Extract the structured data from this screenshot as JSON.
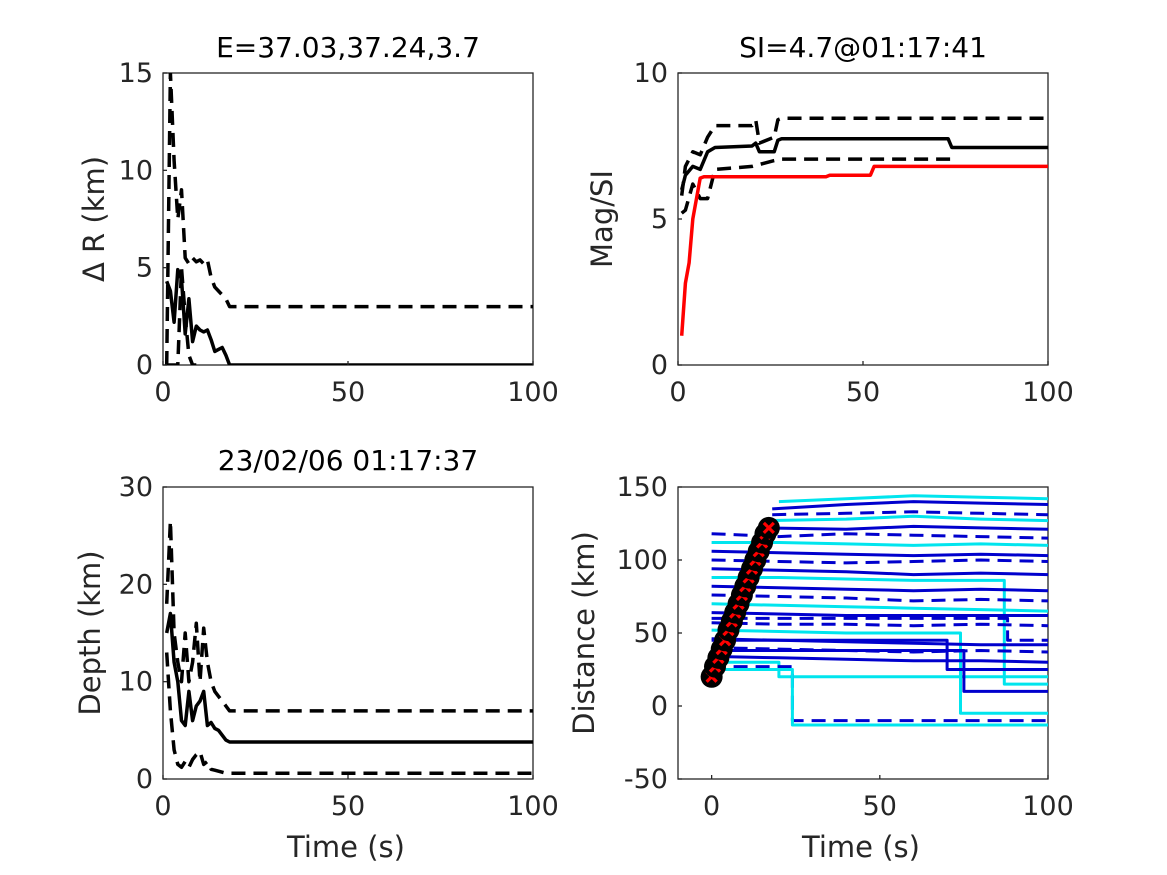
{
  "chart_data": [
    {
      "type": "line",
      "title": "E=37.03,37.24,3.7",
      "xlabel": "",
      "ylabel": "Δ R (km)",
      "xlim": [
        0,
        100
      ],
      "ylim": [
        0,
        15
      ],
      "xticks": [
        "0",
        "50",
        "100"
      ],
      "yticks": [
        "0",
        "5",
        "10",
        "15"
      ],
      "grid": false,
      "series": [
        {
          "style": "solid",
          "color": "#000000",
          "x": [
            1,
            2,
            3,
            4,
            5,
            6,
            7,
            8,
            9,
            10,
            11,
            12,
            13,
            14,
            15,
            16,
            17,
            18,
            20,
            100
          ],
          "y": [
            4.3,
            3.8,
            2.2,
            4.9,
            4.4,
            1.6,
            3.4,
            1.2,
            2.0,
            1.8,
            1.7,
            1.8,
            1.3,
            0.7,
            0.8,
            0.9,
            0.5,
            0.0,
            0.0,
            0.0
          ]
        },
        {
          "style": "dashed",
          "color": "#000000",
          "x": [
            1,
            2,
            3,
            4,
            5,
            6,
            7,
            8,
            9,
            10,
            11,
            12,
            13,
            14,
            15,
            16,
            17,
            18,
            20,
            100
          ],
          "y": [
            0.0,
            15.0,
            10.5,
            7.5,
            9.0,
            5.5,
            5.2,
            5.5,
            5.3,
            5.4,
            5.2,
            5.4,
            4.5,
            4.0,
            3.8,
            3.6,
            3.4,
            3.0,
            3.0,
            3.0
          ]
        },
        {
          "style": "dashed",
          "color": "#000000",
          "x": [
            1,
            2,
            3,
            4,
            5,
            6,
            7,
            8,
            9
          ],
          "y": [
            0.0,
            0.0,
            0.0,
            0.0,
            5.0,
            2.5,
            0.5,
            0.0,
            0.0
          ]
        }
      ]
    },
    {
      "type": "line",
      "title": "SI=4.7@01:17:41",
      "xlabel": "",
      "ylabel": "Mag/SI",
      "xlim": [
        0,
        100
      ],
      "ylim": [
        0,
        10
      ],
      "xticks": [
        "0",
        "50",
        "100"
      ],
      "yticks": [
        "0",
        "5",
        "10"
      ],
      "grid": false,
      "series": [
        {
          "style": "solid",
          "color": "#000000",
          "x": [
            1,
            2,
            4,
            6,
            8,
            10,
            20,
            21,
            22,
            26,
            27,
            28,
            73,
            74,
            100
          ],
          "y": [
            6.0,
            6.5,
            6.8,
            6.7,
            7.3,
            7.45,
            7.5,
            7.6,
            7.3,
            7.3,
            7.7,
            7.75,
            7.75,
            7.45,
            7.45
          ]
        },
        {
          "style": "dashed",
          "color": "#000000",
          "x": [
            1,
            2,
            4,
            6,
            8,
            10,
            20,
            21,
            22,
            26,
            27,
            28,
            73,
            74,
            100
          ],
          "y": [
            5.8,
            6.8,
            7.3,
            7.2,
            7.8,
            8.2,
            8.2,
            8.4,
            7.6,
            7.8,
            8.4,
            8.45,
            8.45,
            8.45,
            8.45
          ]
        },
        {
          "style": "dashed",
          "color": "#000000",
          "x": [
            1,
            2,
            4,
            6,
            8,
            10,
            20,
            26,
            28,
            73,
            74
          ],
          "y": [
            5.2,
            5.3,
            6.2,
            5.7,
            5.7,
            6.7,
            6.8,
            7.0,
            7.05,
            7.05,
            7.05
          ]
        },
        {
          "style": "solid",
          "color": "#ff0000",
          "x": [
            1,
            2,
            3,
            4,
            6,
            7,
            10,
            20,
            40,
            41,
            52,
            53,
            100
          ],
          "y": [
            1.0,
            2.8,
            3.5,
            5.0,
            6.4,
            6.45,
            6.45,
            6.45,
            6.45,
            6.5,
            6.5,
            6.8,
            6.8
          ]
        }
      ]
    },
    {
      "type": "line",
      "title": "23/02/06 01:17:37",
      "xlabel": "Time (s)",
      "ylabel": "Depth (km)",
      "xlim": [
        0,
        100
      ],
      "ylim": [
        0,
        30
      ],
      "xticks": [
        "0",
        "50",
        "100"
      ],
      "yticks": [
        "0",
        "10",
        "20",
        "30"
      ],
      "grid": false,
      "series": [
        {
          "style": "solid",
          "color": "#000000",
          "x": [
            1,
            2,
            3,
            4,
            5,
            6,
            7,
            8,
            9,
            10,
            11,
            12,
            13,
            14,
            15,
            16,
            17,
            18,
            100
          ],
          "y": [
            15,
            17,
            12,
            10,
            6,
            5.5,
            9,
            6,
            7.5,
            8,
            9,
            5.5,
            5.8,
            5.2,
            5.0,
            4.5,
            4.0,
            3.8,
            3.8
          ]
        },
        {
          "style": "dashed",
          "color": "#000000",
          "x": [
            1,
            2,
            3,
            4,
            5,
            6,
            7,
            8,
            9,
            10,
            11,
            12,
            13,
            14,
            15,
            16,
            17,
            18,
            100
          ],
          "y": [
            18,
            26.5,
            15,
            12,
            10,
            15,
            10,
            12,
            16,
            10,
            15.5,
            12,
            10,
            9,
            8.5,
            8,
            7.5,
            7.0,
            7.0
          ]
        },
        {
          "style": "dashed",
          "color": "#000000",
          "x": [
            1,
            2,
            3,
            4,
            5,
            6,
            7,
            8,
            9,
            10,
            11,
            12,
            13,
            14,
            15,
            16,
            17,
            18,
            100
          ],
          "y": [
            13,
            7,
            3,
            1.5,
            1.2,
            1.8,
            1.2,
            2.0,
            2.5,
            2.8,
            1.5,
            1.8,
            1.0,
            0.9,
            0.8,
            0.7,
            0.6,
            0.6,
            0.6
          ]
        }
      ]
    },
    {
      "type": "line",
      "title": "",
      "xlabel": "Time (s)",
      "ylabel": "Distance (km)",
      "xlim": [
        -10,
        100
      ],
      "ylim": [
        -50,
        150
      ],
      "xticks": [
        "0",
        "50",
        "100"
      ],
      "yticks": [
        "-50",
        "0",
        "50",
        "100",
        "150"
      ],
      "grid": false,
      "series": [
        {
          "style": "solid",
          "color": "#00e5ee",
          "x": [
            20,
            40,
            60,
            80,
            100
          ],
          "y": [
            140,
            142,
            144,
            143,
            142
          ]
        },
        {
          "style": "solid",
          "color": "#0000cd",
          "x": [
            18,
            40,
            60,
            80,
            100
          ],
          "y": [
            135,
            138,
            140,
            139,
            138
          ]
        },
        {
          "style": "dashed",
          "color": "#0000cd",
          "x": [
            18,
            40,
            60,
            80,
            100
          ],
          "y": [
            131,
            132,
            133,
            132,
            131
          ]
        },
        {
          "style": "solid",
          "color": "#00e5ee",
          "x": [
            16,
            40,
            60,
            80,
            100
          ],
          "y": [
            127,
            128,
            130,
            128,
            127
          ]
        },
        {
          "style": "solid",
          "color": "#0000cd",
          "x": [
            15,
            40,
            60,
            80,
            100
          ],
          "y": [
            122,
            121,
            123,
            122,
            121
          ]
        },
        {
          "style": "dashed",
          "color": "#0000cd",
          "x": [
            0,
            20,
            40,
            60,
            80,
            100
          ],
          "y": [
            118,
            116,
            118,
            117,
            116,
            115
          ]
        },
        {
          "style": "solid",
          "color": "#00e5ee",
          "x": [
            0,
            20,
            40,
            60,
            80,
            100
          ],
          "y": [
            112,
            112,
            111,
            110,
            111,
            110
          ]
        },
        {
          "style": "solid",
          "color": "#0000cd",
          "x": [
            0,
            20,
            40,
            60,
            80,
            100
          ],
          "y": [
            106,
            105,
            104,
            103,
            104,
            103
          ]
        },
        {
          "style": "dashed",
          "color": "#0000cd",
          "x": [
            0,
            20,
            40,
            60,
            80,
            100
          ],
          "y": [
            100,
            99,
            98,
            99,
            100,
            99
          ]
        },
        {
          "style": "solid",
          "color": "#0000cd",
          "x": [
            0,
            20,
            40,
            60,
            80,
            100
          ],
          "y": [
            94,
            93,
            92,
            90,
            91,
            90
          ]
        },
        {
          "style": "solid",
          "color": "#00e5ee",
          "x": [
            0,
            20,
            40,
            60,
            80,
            87,
            87,
            100
          ],
          "y": [
            88,
            88,
            87,
            86,
            86,
            86,
            15,
            15
          ]
        },
        {
          "style": "solid",
          "color": "#0000cd",
          "x": [
            0,
            20,
            40,
            60,
            80,
            100
          ],
          "y": [
            82,
            81,
            80,
            79,
            80,
            79
          ]
        },
        {
          "style": "dashed",
          "color": "#0000cd",
          "x": [
            0,
            20,
            40,
            60,
            80,
            100
          ],
          "y": [
            76,
            75,
            74,
            72,
            73,
            72
          ]
        },
        {
          "style": "solid",
          "color": "#00e5ee",
          "x": [
            0,
            20,
            40,
            60,
            80,
            100
          ],
          "y": [
            70,
            69,
            68,
            67,
            66,
            65
          ]
        },
        {
          "style": "solid",
          "color": "#0000cd",
          "x": [
            0,
            20,
            40,
            60,
            80,
            100
          ],
          "y": [
            64,
            63,
            62,
            62,
            62,
            62
          ]
        },
        {
          "style": "dashed",
          "color": "#0000cd",
          "x": [
            0,
            20,
            40,
            60,
            80,
            100
          ],
          "y": [
            57,
            56,
            56,
            55,
            56,
            55
          ]
        },
        {
          "style": "solid",
          "color": "#00e5ee",
          "x": [
            0,
            20,
            40,
            60,
            74,
            74,
            100
          ],
          "y": [
            52,
            51,
            50,
            50,
            50,
            -5,
            -5
          ]
        },
        {
          "style": "solid",
          "color": "#0000cd",
          "x": [
            0,
            20,
            40,
            60,
            80,
            100
          ],
          "y": [
            46,
            45,
            44,
            43,
            42,
            42
          ]
        },
        {
          "style": "dashed",
          "color": "#0000cd",
          "x": [
            0,
            20,
            40,
            60,
            80,
            100
          ],
          "y": [
            40,
            39,
            38,
            37,
            38,
            37
          ]
        },
        {
          "style": "solid",
          "color": "#0000cd",
          "x": [
            0,
            20,
            40,
            60,
            80,
            100
          ],
          "y": [
            34,
            33,
            32,
            31,
            31,
            30
          ]
        },
        {
          "style": "solid",
          "color": "#00e5ee",
          "x": [
            0,
            20,
            20,
            100
          ],
          "y": [
            30,
            30,
            20,
            20
          ]
        },
        {
          "style": "dashed",
          "color": "#0000cd",
          "x": [
            0,
            24,
            24,
            100
          ],
          "y": [
            27,
            27,
            -10,
            -10
          ]
        },
        {
          "style": "solid",
          "color": "#00e5ee",
          "x": [
            0,
            24,
            24,
            100
          ],
          "y": [
            25,
            25,
            -13,
            -13
          ]
        },
        {
          "style": "solid",
          "color": "#0000cd",
          "x": [
            0,
            75,
            75,
            100
          ],
          "y": [
            38,
            38,
            10,
            10
          ]
        },
        {
          "style": "dashed",
          "color": "#0000cd",
          "x": [
            0,
            88,
            88,
            100
          ],
          "y": [
            60,
            60,
            45,
            45
          ]
        },
        {
          "style": "solid",
          "color": "#0000cd",
          "x": [
            0,
            70,
            70,
            100
          ],
          "y": [
            45,
            45,
            25,
            25
          ]
        }
      ],
      "markers": {
        "marker": "circle-x",
        "fill": "#000000",
        "x_color": "#ff0000",
        "x": [
          0,
          1,
          2,
          3,
          4,
          5,
          6,
          7,
          8,
          9,
          10,
          11,
          12,
          13,
          14,
          15,
          16,
          17
        ],
        "y": [
          20,
          27,
          33,
          39,
          45,
          52,
          58,
          64,
          70,
          76,
          82,
          88,
          94,
          100,
          106,
          112,
          118,
          122
        ]
      }
    }
  ]
}
